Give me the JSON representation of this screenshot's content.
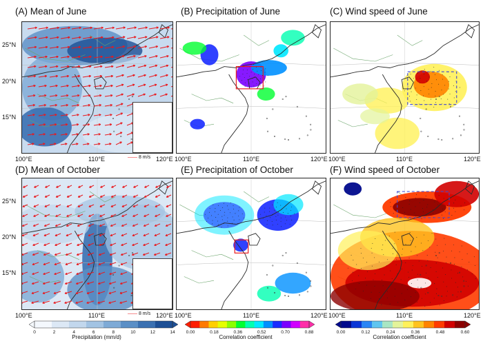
{
  "panels": [
    {
      "id": "A",
      "title": "(A) Mean of June",
      "kind": "mean",
      "style": "blue",
      "lon_min": "100°E",
      "lon_mid": "110°E",
      "lon_max": "120°E",
      "lats": [
        "25°N",
        "20°N",
        "15°N"
      ],
      "has_inset": true,
      "ref_vector": "8 m/s"
    },
    {
      "id": "B",
      "title": "(B) Precipitation of June",
      "kind": "corr",
      "style": "precip_june",
      "lon_min": "100°E",
      "lon_mid": "110°E",
      "lon_max": "120°E",
      "lats": [],
      "has_inset": false,
      "ref_vector": ""
    },
    {
      "id": "C",
      "title": "(C) Wind speed of June",
      "kind": "corr",
      "style": "wind_june",
      "lon_min": "100°E",
      "lon_mid": "110°E",
      "lon_max": "120°E",
      "lats": [],
      "has_inset": false,
      "ref_vector": ""
    },
    {
      "id": "D",
      "title": "(D) Mean of October",
      "kind": "mean",
      "style": "blue_oct",
      "lon_min": "100°E",
      "lon_mid": "110°E",
      "lon_max": "120°E",
      "lats": [
        "25°N",
        "20°N",
        "15°N"
      ],
      "has_inset": true,
      "ref_vector": "8 m/s"
    },
    {
      "id": "E",
      "title": "(E) Precipitation of October",
      "kind": "corr",
      "style": "precip_oct",
      "lon_min": "100°E",
      "lon_mid": "110°E",
      "lon_max": "120°E",
      "lats": [],
      "has_inset": false,
      "ref_vector": ""
    },
    {
      "id": "F",
      "title": "(F) Wind speed of October",
      "kind": "corr",
      "style": "wind_oct",
      "lon_min": "100°E",
      "lon_mid": "110°E",
      "lon_max": "120°E",
      "lats": [],
      "has_inset": false,
      "ref_vector": ""
    }
  ],
  "colorbars": [
    {
      "id": "precip",
      "title": "Precipitation (mm/d)",
      "ticks": [
        "0",
        "2",
        "4",
        "6",
        "8",
        "10",
        "12",
        "14"
      ],
      "colors": [
        "#f4f8fd",
        "#dce8f5",
        "#c2d7ed",
        "#a2c3e3",
        "#7eaad6",
        "#5b8fc6",
        "#3a70b1",
        "#1d4f95"
      ]
    },
    {
      "id": "corr1",
      "title": "Correlation coefficient",
      "ticks": [
        "0.00",
        "0.18",
        "0.36",
        "0.52",
        "0.70",
        "0.88"
      ],
      "colors": [
        "#ff1d00",
        "#ff7a00",
        "#ffcf00",
        "#e6ff00",
        "#8cff00",
        "#00ff30",
        "#00ffb0",
        "#00e8ff",
        "#0090ff",
        "#1a2cff",
        "#7a00ff",
        "#d000ff",
        "#ff2ea8"
      ]
    },
    {
      "id": "corr2",
      "title": "Correlation coefficient",
      "ticks": [
        "0.00",
        "0.12",
        "0.24",
        "0.36",
        "0.48",
        "0.60"
      ],
      "colors": [
        "#000a8c",
        "#0a36d6",
        "#2a85f5",
        "#5fc5f0",
        "#a8e6c4",
        "#e3f39a",
        "#fff15a",
        "#ffc31f",
        "#ff8300",
        "#ff3c00",
        "#d10000",
        "#8c0000"
      ]
    }
  ],
  "colors": {
    "land_border": "#2a2a2a",
    "river": "#6aa46a",
    "arrow": "#e8191e",
    "box": "#e8191e",
    "dashbox": "#3b45d8"
  }
}
